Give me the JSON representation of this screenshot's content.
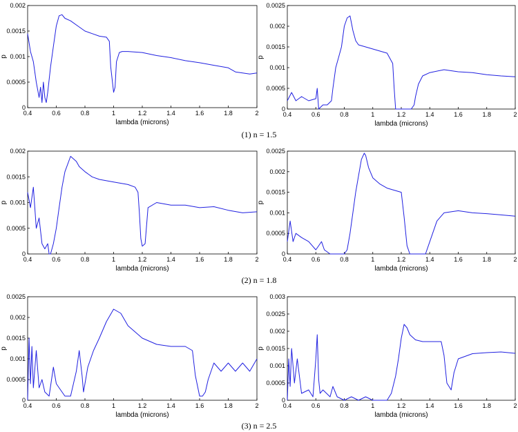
{
  "colors": {
    "series": "#1f1fe0",
    "axis": "#000000"
  },
  "captions": [
    "(1) n = 1.5",
    "(2) n = 1.8",
    "(3) n = 2.5"
  ],
  "chart_data": [
    {
      "type": "line",
      "xlabel": "lambda (microns)",
      "ylabel": "p",
      "xlim": [
        0.4,
        2
      ],
      "ylim": [
        0,
        0.002
      ],
      "xticks": [
        "0.4",
        "0.6",
        "0.8",
        "1",
        "1.2",
        "1.4",
        "1.6",
        "1.8",
        "2"
      ],
      "yticks": [
        "0",
        "0.0005",
        "0.001",
        "0.0015",
        "0.002"
      ],
      "series": [
        {
          "x": [
            0.4,
            0.42,
            0.44,
            0.46,
            0.48,
            0.49,
            0.5,
            0.51,
            0.52,
            0.53,
            0.54,
            0.56,
            0.58,
            0.6,
            0.62,
            0.64,
            0.66,
            0.7,
            0.75,
            0.8,
            0.85,
            0.9,
            0.95,
            0.97,
            0.98,
            1.0,
            1.01,
            1.02,
            1.04,
            1.06,
            1.1,
            1.2,
            1.3,
            1.4,
            1.5,
            1.6,
            1.7,
            1.8,
            1.85,
            1.9,
            1.95,
            2.0
          ],
          "y": [
            0.00145,
            0.0011,
            0.0009,
            0.0005,
            0.0002,
            0.0004,
            0.0001,
            0.0005,
            0.0002,
            0.0001,
            0.0003,
            0.0008,
            0.0012,
            0.0016,
            0.0018,
            0.00182,
            0.00175,
            0.0017,
            0.0016,
            0.0015,
            0.00145,
            0.0014,
            0.00138,
            0.0013,
            0.0008,
            0.0003,
            0.0004,
            0.0009,
            0.00108,
            0.0011,
            0.0011,
            0.00108,
            0.00102,
            0.00098,
            0.00092,
            0.00088,
            0.00083,
            0.00078,
            0.0007,
            0.00068,
            0.00066,
            0.00068
          ]
        }
      ]
    },
    {
      "type": "line",
      "xlabel": "lambda (microns)",
      "ylabel": "p",
      "xlim": [
        0.4,
        2
      ],
      "ylim": [
        0,
        0.0025
      ],
      "xticks": [
        "0.4",
        "0.6",
        "0.8",
        "1",
        "1.2",
        "1.4",
        "1.6",
        "1.8",
        "2"
      ],
      "yticks": [
        "0",
        "0.0005",
        "0.001",
        "0.0015",
        "0.002",
        "0.0025"
      ],
      "series": [
        {
          "x": [
            0.4,
            0.43,
            0.46,
            0.5,
            0.55,
            0.6,
            0.61,
            0.62,
            0.65,
            0.68,
            0.71,
            0.72,
            0.74,
            0.76,
            0.78,
            0.8,
            0.82,
            0.84,
            0.86,
            0.88,
            0.9,
            1.0,
            1.1,
            1.14,
            1.15,
            1.16,
            1.17,
            1.2,
            1.25,
            1.27,
            1.29,
            1.3,
            1.32,
            1.35,
            1.4,
            1.5,
            1.6,
            1.7,
            1.8,
            1.9,
            2.0
          ],
          "y": [
            0.0002,
            0.0004,
            0.0002,
            0.0003,
            0.0002,
            0.00025,
            0.0005,
            0.0,
            0.0001,
            0.0001,
            0.0002,
            0.0005,
            0.001,
            0.00125,
            0.0015,
            0.002,
            0.0022,
            0.00225,
            0.0019,
            0.00165,
            0.00155,
            0.00145,
            0.00135,
            0.0011,
            0.0005,
            0.0,
            0.0,
            0.0,
            0.0,
            0.0,
            0.0001,
            0.0003,
            0.0006,
            0.0008,
            0.00088,
            0.00095,
            0.0009,
            0.00088,
            0.00083,
            0.0008,
            0.00078
          ]
        }
      ]
    },
    {
      "type": "line",
      "xlabel": "lambda (microns)",
      "ylabel": "p",
      "xlim": [
        0.4,
        2
      ],
      "ylim": [
        0,
        0.002
      ],
      "xticks": [
        "0.4",
        "0.6",
        "0.8",
        "1",
        "1.2",
        "1.4",
        "1.6",
        "1.8",
        "2"
      ],
      "yticks": [
        "0",
        "0.0005",
        "0.001",
        "0.0015",
        "0.002"
      ],
      "series": [
        {
          "x": [
            0.4,
            0.42,
            0.44,
            0.46,
            0.48,
            0.5,
            0.52,
            0.54,
            0.55,
            0.56,
            0.58,
            0.6,
            0.62,
            0.64,
            0.66,
            0.7,
            0.74,
            0.76,
            0.8,
            0.85,
            0.9,
            1.0,
            1.1,
            1.15,
            1.17,
            1.18,
            1.19,
            1.2,
            1.22,
            1.24,
            1.3,
            1.4,
            1.5,
            1.6,
            1.7,
            1.8,
            1.9,
            2.0
          ],
          "y": [
            0.0012,
            0.0009,
            0.0013,
            0.0005,
            0.0007,
            0.0002,
            0.0001,
            0.0002,
            0.0,
            0.0,
            0.0002,
            0.0005,
            0.0009,
            0.0013,
            0.0016,
            0.0019,
            0.0018,
            0.0017,
            0.0016,
            0.0015,
            0.00145,
            0.0014,
            0.00135,
            0.0013,
            0.0012,
            0.0008,
            0.0003,
            0.00015,
            0.0002,
            0.0009,
            0.001,
            0.00095,
            0.00095,
            0.0009,
            0.00092,
            0.00085,
            0.0008,
            0.00082
          ]
        }
      ]
    },
    {
      "type": "line",
      "xlabel": "lambda (microns)",
      "ylabel": "p",
      "xlim": [
        0.4,
        2
      ],
      "ylim": [
        0,
        0.0025
      ],
      "xticks": [
        "0.4",
        "0.6",
        "0.8",
        "1",
        "1.2",
        "1.4",
        "1.6",
        "1.8",
        "2"
      ],
      "yticks": [
        "0",
        "0.0005",
        "0.001",
        "0.0015",
        "0.002",
        "0.0025"
      ],
      "series": [
        {
          "x": [
            0.4,
            0.42,
            0.44,
            0.46,
            0.5,
            0.55,
            0.6,
            0.62,
            0.64,
            0.66,
            0.7,
            0.75,
            0.8,
            0.82,
            0.84,
            0.86,
            0.88,
            0.9,
            0.92,
            0.94,
            0.95,
            0.97,
            1.0,
            1.05,
            1.1,
            1.2,
            1.22,
            1.24,
            1.26,
            1.3,
            1.35,
            1.37,
            1.4,
            1.45,
            1.5,
            1.6,
            1.7,
            1.8,
            1.9,
            2.0
          ],
          "y": [
            0.0003,
            0.0008,
            0.0003,
            0.0005,
            0.0004,
            0.0003,
            0.0001,
            0.0002,
            0.0003,
            0.0001,
            0.0,
            0.0,
            0.0,
            0.0001,
            0.0005,
            0.001,
            0.0015,
            0.0019,
            0.0023,
            0.00245,
            0.0024,
            0.0021,
            0.00185,
            0.0017,
            0.0016,
            0.0015,
            0.0009,
            0.0002,
            0.0,
            0.0,
            0.0,
            0.0,
            0.0003,
            0.0008,
            0.001,
            0.00105,
            0.001,
            0.00098,
            0.00095,
            0.00092
          ]
        }
      ]
    },
    {
      "type": "line",
      "xlabel": "lambda (microns)",
      "ylabel": "p",
      "xlim": [
        0.4,
        2
      ],
      "ylim": [
        0,
        0.0025
      ],
      "xticks": [
        "0.4",
        "0.6",
        "0.8",
        "1",
        "1.2",
        "1.4",
        "1.6",
        "1.8",
        "2"
      ],
      "yticks": [
        "0",
        "0.0005",
        "0.001",
        "0.0015",
        "0.002",
        "0.0025"
      ],
      "series": [
        {
          "x": [
            0.4,
            0.41,
            0.42,
            0.43,
            0.44,
            0.46,
            0.48,
            0.5,
            0.52,
            0.55,
            0.58,
            0.6,
            0.62,
            0.64,
            0.66,
            0.7,
            0.74,
            0.76,
            0.78,
            0.79,
            0.8,
            0.82,
            0.86,
            0.9,
            0.95,
            1.0,
            1.05,
            1.1,
            1.2,
            1.3,
            1.4,
            1.5,
            1.55,
            1.57,
            1.6,
            1.62,
            1.64,
            1.66,
            1.7,
            1.75,
            1.8,
            1.85,
            1.9,
            1.95,
            2.0
          ],
          "y": [
            0.0,
            0.0015,
            0.0004,
            0.0013,
            0.0003,
            0.0012,
            0.0003,
            0.0005,
            0.0002,
            0.0001,
            0.0008,
            0.0004,
            0.0003,
            0.0002,
            0.0001,
            0.0001,
            0.0007,
            0.0012,
            0.0006,
            0.0002,
            0.0004,
            0.0008,
            0.0012,
            0.0015,
            0.0019,
            0.0022,
            0.0021,
            0.0018,
            0.0015,
            0.00135,
            0.0013,
            0.0013,
            0.0012,
            0.0006,
            0.0001,
            0.0001,
            0.0002,
            0.0005,
            0.0009,
            0.0007,
            0.0009,
            0.0007,
            0.0009,
            0.0007,
            0.001
          ]
        }
      ]
    },
    {
      "type": "line",
      "xlabel": "lambda (microns)",
      "ylabel": "p",
      "xlim": [
        0.4,
        2
      ],
      "ylim": [
        0,
        0.003
      ],
      "xticks": [
        "0.4",
        "0.6",
        "0.8",
        "1",
        "1.2",
        "1.4",
        "1.6",
        "1.8",
        "2"
      ],
      "yticks": [
        "0",
        "0.0005",
        "0.001",
        "0.0015",
        "0.002",
        "0.0025",
        "0.003"
      ],
      "series": [
        {
          "x": [
            0.4,
            0.41,
            0.42,
            0.43,
            0.45,
            0.47,
            0.5,
            0.55,
            0.58,
            0.6,
            0.61,
            0.62,
            0.63,
            0.65,
            0.7,
            0.72,
            0.75,
            0.8,
            0.85,
            0.9,
            0.95,
            1.0,
            1.05,
            1.1,
            1.13,
            1.16,
            1.18,
            1.2,
            1.22,
            1.24,
            1.26,
            1.3,
            1.35,
            1.4,
            1.45,
            1.48,
            1.5,
            1.52,
            1.55,
            1.57,
            1.6,
            1.7,
            1.8,
            1.9,
            2.0
          ],
          "y": [
            0.0,
            0.0012,
            0.0004,
            0.0015,
            0.0005,
            0.0012,
            0.0002,
            0.0003,
            0.0001,
            0.0012,
            0.0019,
            0.0006,
            0.0002,
            0.0003,
            0.0001,
            0.0004,
            0.0001,
            0.0,
            0.0001,
            0.0,
            0.0001,
            0.0,
            0.0,
            0.0,
            0.0002,
            0.0007,
            0.0012,
            0.0018,
            0.0022,
            0.0021,
            0.0019,
            0.00175,
            0.0017,
            0.0017,
            0.0017,
            0.0017,
            0.0013,
            0.0005,
            0.0003,
            0.0008,
            0.0012,
            0.00135,
            0.00138,
            0.0014,
            0.00136
          ]
        }
      ]
    }
  ]
}
